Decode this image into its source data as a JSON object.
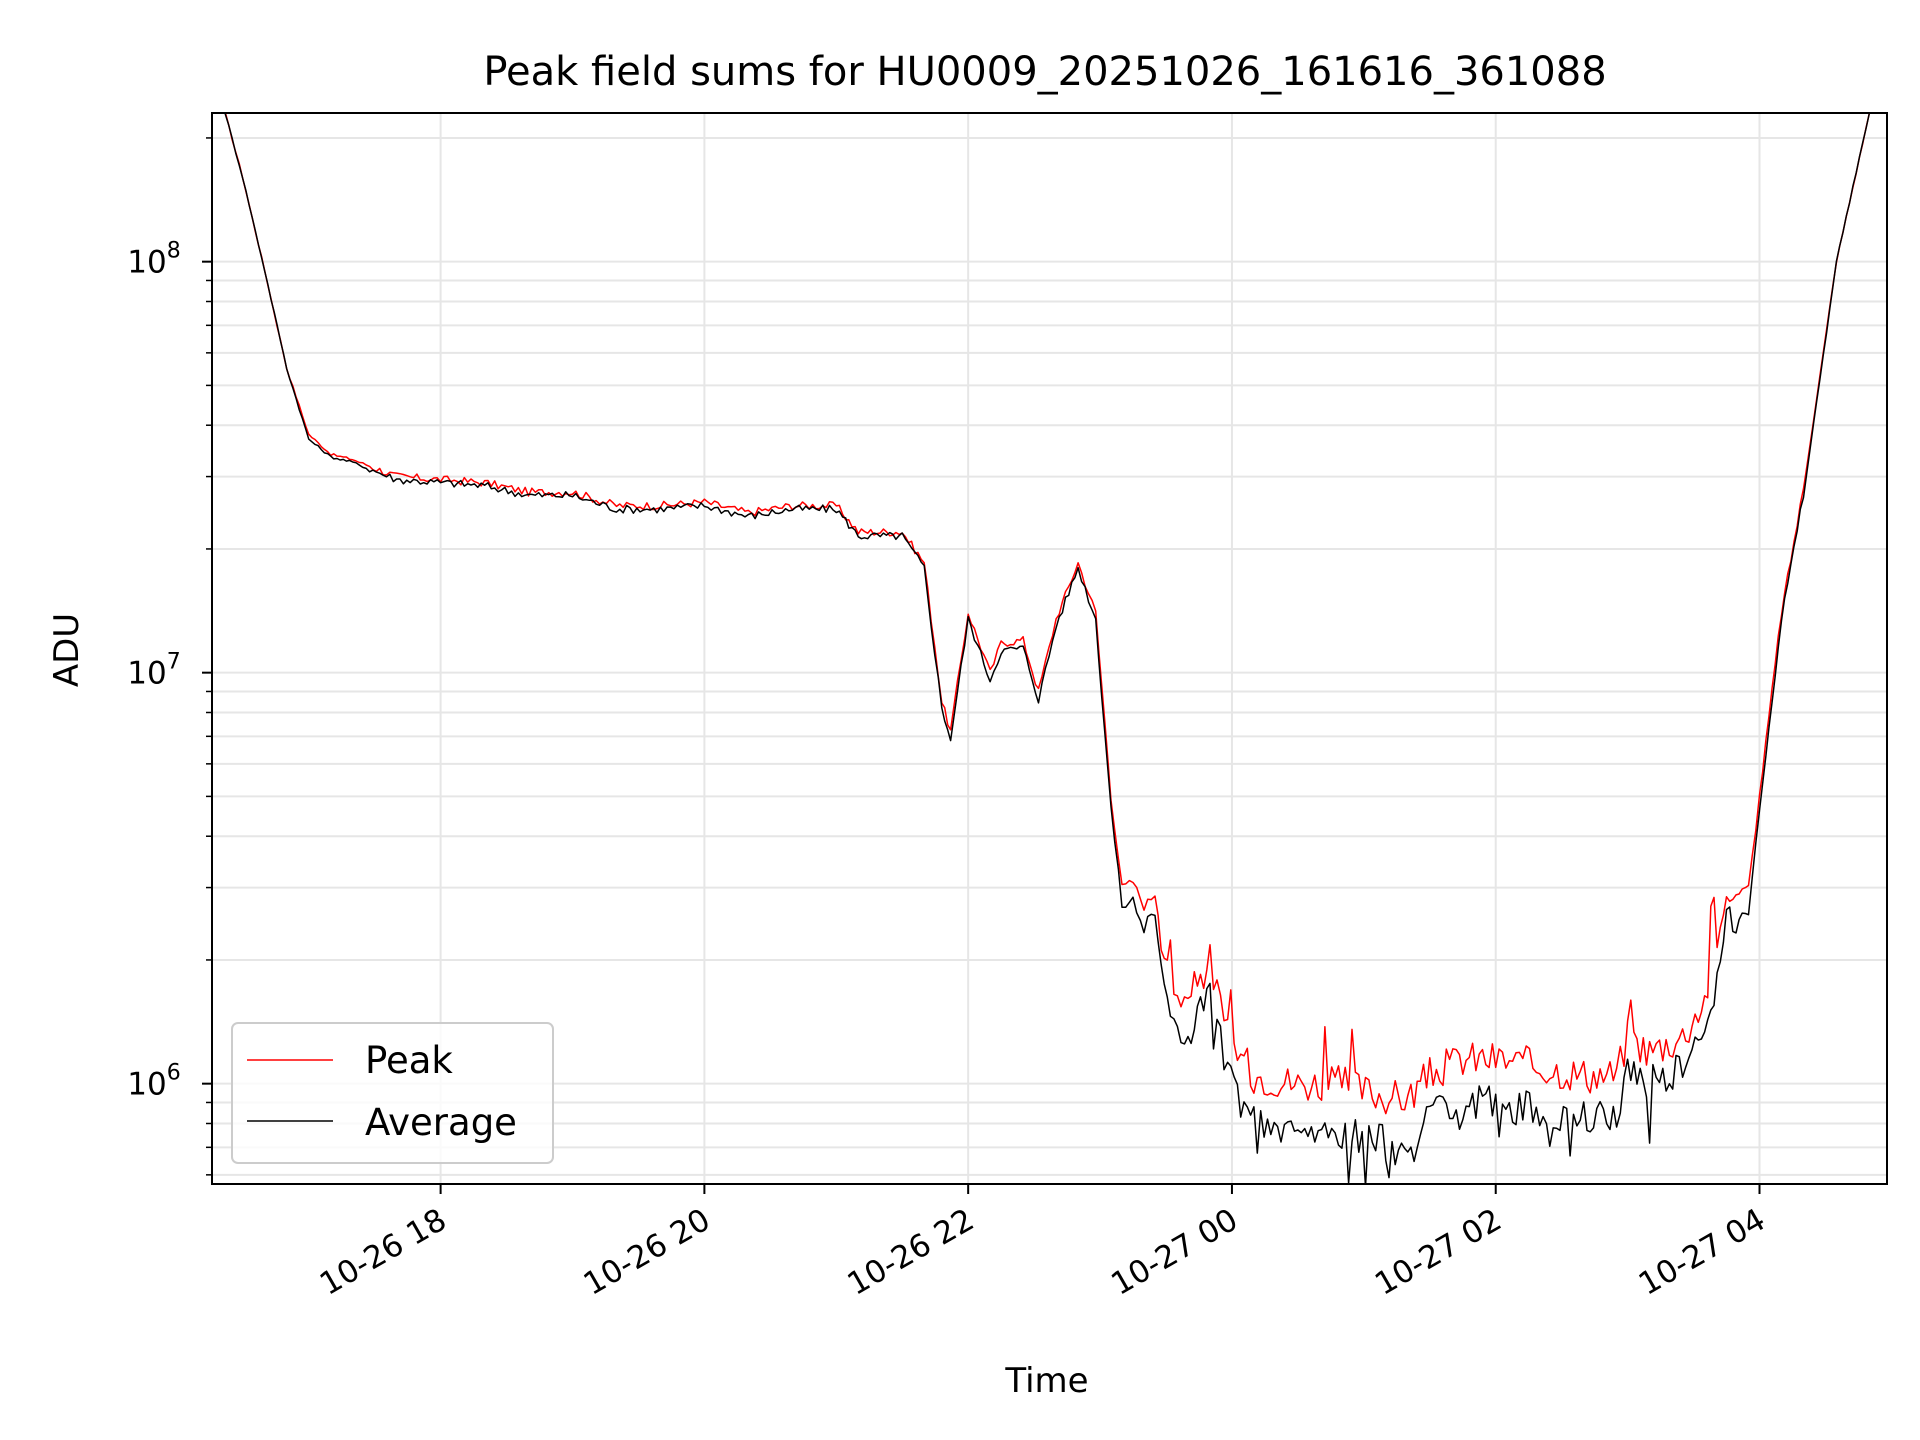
{
  "chart_data": {
    "type": "line",
    "title": "Peak field sums for HU0009_20251026_161616_361088",
    "xlabel": "Time",
    "ylabel": "ADU",
    "x_type": "datetime",
    "xlim": [
      "2025-10-26 16:16",
      "2025-10-27 04:58"
    ],
    "ylim": [
      570000,
      230000000
    ],
    "y_scale": "log",
    "x_ticks": [
      "2025-10-26 18:00",
      "2025-10-26 20:00",
      "2025-10-26 22:00",
      "2025-10-27 00:00",
      "2025-10-27 02:00",
      "2025-10-27 04:00"
    ],
    "x_tick_labels": [
      "10-26 18",
      "10-26 20",
      "10-26 22",
      "10-27 00",
      "10-27 02",
      "10-27 04"
    ],
    "y_ticks": [
      1000000,
      10000000,
      100000000
    ],
    "y_tick_labels": [
      {
        "base": "10",
        "exp": "6"
      },
      {
        "base": "10",
        "exp": "7"
      },
      {
        "base": "10",
        "exp": "8"
      }
    ],
    "grid": "major and minor",
    "legend_position": "lower left",
    "series": [
      {
        "name": "Peak",
        "color": "#ff0000",
        "x": [
          "2025-10-26 16:22",
          "2025-10-26 16:30",
          "2025-10-26 16:40",
          "2025-10-26 16:50",
          "2025-10-26 17:00",
          "2025-10-26 17:10",
          "2025-10-26 17:20",
          "2025-10-26 17:40",
          "2025-10-26 18:00",
          "2025-10-26 18:20",
          "2025-10-26 18:40",
          "2025-10-26 19:00",
          "2025-10-26 19:20",
          "2025-10-26 19:40",
          "2025-10-26 20:00",
          "2025-10-26 20:20",
          "2025-10-26 20:40",
          "2025-10-26 21:00",
          "2025-10-26 21:10",
          "2025-10-26 21:20",
          "2025-10-26 21:30",
          "2025-10-26 21:40",
          "2025-10-26 21:48",
          "2025-10-26 21:52",
          "2025-10-26 22:00",
          "2025-10-26 22:10",
          "2025-10-26 22:15",
          "2025-10-26 22:25",
          "2025-10-26 22:32",
          "2025-10-26 22:40",
          "2025-10-26 22:50",
          "2025-10-26 22:58",
          "2025-10-26 23:05",
          "2025-10-26 23:10",
          "2025-10-26 23:15",
          "2025-10-26 23:20",
          "2025-10-26 23:25",
          "2025-10-26 23:32",
          "2025-10-26 23:40",
          "2025-10-26 23:50",
          "2025-10-26 23:58",
          "2025-10-27 00:10",
          "2025-10-27 00:30",
          "2025-10-27 00:50",
          "2025-10-27 01:10",
          "2025-10-27 01:20",
          "2025-10-27 01:30",
          "2025-10-27 01:45",
          "2025-10-27 02:00",
          "2025-10-27 02:20",
          "2025-10-27 02:40",
          "2025-10-27 02:55",
          "2025-10-27 03:00",
          "2025-10-27 03:10",
          "2025-10-27 03:25",
          "2025-10-27 03:35",
          "2025-10-27 03:45",
          "2025-10-27 03:55",
          "2025-10-27 04:00",
          "2025-10-27 04:10",
          "2025-10-27 04:20",
          "2025-10-27 04:35",
          "2025-10-27 04:50"
        ],
        "values": [
          230000000,
          160000000,
          95000000,
          55000000,
          38000000,
          34000000,
          33000000,
          30000000,
          29500000,
          29000000,
          27500000,
          27500000,
          25500000,
          25500000,
          26000000,
          24500000,
          25500000,
          25500000,
          22000000,
          22000000,
          22000000,
          18500000,
          8500000,
          7200000,
          14000000,
          10000000,
          11800000,
          12000000,
          9000000,
          13500000,
          18500000,
          14000000,
          5000000,
          3000000,
          3100000,
          2700000,
          2900000,
          1700000,
          1600000,
          2000000,
          1300000,
          1050000,
          1000000,
          1000000,
          930000,
          920000,
          1050000,
          1150000,
          1150000,
          1100000,
          1050000,
          1050000,
          1300000,
          1200000,
          1300000,
          1600000,
          2800000,
          3000000,
          5000000,
          14000000,
          28000000,
          100000000,
          230000000
        ]
      },
      {
        "name": "Average",
        "color": "#000000",
        "x": [
          "2025-10-26 16:22",
          "2025-10-26 16:30",
          "2025-10-26 16:40",
          "2025-10-26 16:50",
          "2025-10-26 17:00",
          "2025-10-26 17:10",
          "2025-10-26 17:20",
          "2025-10-26 17:40",
          "2025-10-26 18:00",
          "2025-10-26 18:20",
          "2025-10-26 18:40",
          "2025-10-26 19:00",
          "2025-10-26 19:20",
          "2025-10-26 19:40",
          "2025-10-26 20:00",
          "2025-10-26 20:20",
          "2025-10-26 20:40",
          "2025-10-26 21:00",
          "2025-10-26 21:10",
          "2025-10-26 21:20",
          "2025-10-26 21:30",
          "2025-10-26 21:40",
          "2025-10-26 21:48",
          "2025-10-26 21:52",
          "2025-10-26 22:00",
          "2025-10-26 22:10",
          "2025-10-26 22:15",
          "2025-10-26 22:25",
          "2025-10-26 22:32",
          "2025-10-26 22:40",
          "2025-10-26 22:50",
          "2025-10-26 22:58",
          "2025-10-26 23:05",
          "2025-10-26 23:10",
          "2025-10-26 23:15",
          "2025-10-26 23:20",
          "2025-10-26 23:25",
          "2025-10-26 23:32",
          "2025-10-26 23:40",
          "2025-10-26 23:50",
          "2025-10-26 23:58",
          "2025-10-27 00:10",
          "2025-10-27 00:30",
          "2025-10-27 00:50",
          "2025-10-27 01:10",
          "2025-10-27 01:20",
          "2025-10-27 01:30",
          "2025-10-27 01:45",
          "2025-10-27 02:00",
          "2025-10-27 02:20",
          "2025-10-27 02:40",
          "2025-10-27 02:55",
          "2025-10-27 03:00",
          "2025-10-27 03:10",
          "2025-10-27 03:25",
          "2025-10-27 03:35",
          "2025-10-27 03:45",
          "2025-10-27 03:55",
          "2025-10-27 04:00",
          "2025-10-27 04:10",
          "2025-10-27 04:20",
          "2025-10-27 04:35",
          "2025-10-27 04:50"
        ],
        "values": [
          230000000,
          160000000,
          95000000,
          55000000,
          37000000,
          33500000,
          32500000,
          29500000,
          29000000,
          28500000,
          27000000,
          27000000,
          25000000,
          25000000,
          25500000,
          24000000,
          25000000,
          25000000,
          21500000,
          21500000,
          21500000,
          18000000,
          8200000,
          6900000,
          13500000,
          9600000,
          11300000,
          11500000,
          8600000,
          13000000,
          18000000,
          13500000,
          4700000,
          2700000,
          2800000,
          2400000,
          2600000,
          1400000,
          1300000,
          1700000,
          1050000,
          800000,
          760000,
          760000,
          720000,
          680000,
          820000,
          900000,
          900000,
          860000,
          820000,
          840000,
          1100000,
          1000000,
          1100000,
          1300000,
          2400000,
          2600000,
          4700000,
          13500000,
          27000000,
          100000000,
          230000000
        ]
      }
    ]
  }
}
